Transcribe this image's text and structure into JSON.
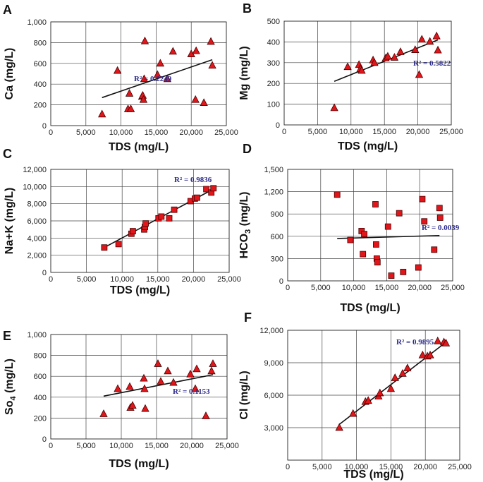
{
  "colors": {
    "marker": "#e0161b",
    "marker_edge": "#4a0000",
    "r2_text": "#2b2b8a",
    "line": "#111111"
  },
  "chart_data": [
    {
      "panel": "A",
      "type": "scatter",
      "marker": "triangle",
      "xlabel": "TDS (mg/L)",
      "ylabel": "Ca (mg/L)",
      "ylabel_sub": "",
      "xlim": [
        0,
        25000
      ],
      "ylim": [
        0,
        1000
      ],
      "xticks": [
        0,
        5000,
        10000,
        15000,
        20000,
        25000
      ],
      "xtick_labels": [
        "0",
        "5,000",
        "10,000",
        "15,000",
        "20,000",
        "25,000"
      ],
      "yticks": [
        0,
        200,
        400,
        600,
        800,
        1000
      ],
      "ytick_labels": [
        "0",
        "200",
        "400",
        "600",
        "800",
        "1,000"
      ],
      "r2_label": "R² = 0.2249",
      "trend": [
        [
          7300,
          270
        ],
        [
          23000,
          635
        ]
      ],
      "points": [
        [
          7300,
          110
        ],
        [
          9500,
          530
        ],
        [
          11000,
          160
        ],
        [
          11200,
          310
        ],
        [
          11400,
          160
        ],
        [
          13000,
          280
        ],
        [
          13100,
          290
        ],
        [
          13200,
          250
        ],
        [
          13300,
          450
        ],
        [
          13400,
          815
        ],
        [
          15200,
          490
        ],
        [
          15600,
          600
        ],
        [
          16600,
          450
        ],
        [
          17400,
          715
        ],
        [
          20000,
          690
        ],
        [
          20600,
          250
        ],
        [
          20700,
          720
        ],
        [
          21800,
          220
        ],
        [
          22800,
          810
        ],
        [
          23000,
          580
        ]
      ]
    },
    {
      "panel": "B",
      "type": "scatter",
      "marker": "triangle",
      "xlabel": "TDS (mg/L)",
      "ylabel": "Mg (mg/L)",
      "ylabel_sub": "",
      "xlim": [
        0,
        25000
      ],
      "ylim": [
        0,
        500
      ],
      "xticks": [
        0,
        5000,
        10000,
        15000,
        20000,
        25000
      ],
      "xtick_labels": [
        "0",
        "5,000",
        "10,000",
        "15,000",
        "20,000",
        "25,000"
      ],
      "yticks": [
        0,
        100,
        200,
        300,
        400,
        500
      ],
      "ytick_labels": [
        "0",
        "100",
        "200",
        "300",
        "400",
        "500"
      ],
      "r2_label": "R² = 0.5822",
      "trend": [
        [
          7500,
          210
        ],
        [
          23000,
          410
        ]
      ],
      "points": [
        [
          7500,
          82
        ],
        [
          9500,
          280
        ],
        [
          11200,
          290
        ],
        [
          11400,
          270
        ],
        [
          11600,
          262
        ],
        [
          13300,
          312
        ],
        [
          13500,
          300
        ],
        [
          15200,
          322
        ],
        [
          15500,
          330
        ],
        [
          16500,
          325
        ],
        [
          17400,
          352
        ],
        [
          19600,
          362
        ],
        [
          20200,
          242
        ],
        [
          20600,
          412
        ],
        [
          21800,
          402
        ],
        [
          22800,
          428
        ],
        [
          23000,
          360
        ]
      ]
    },
    {
      "panel": "C",
      "type": "scatter",
      "marker": "square",
      "xlabel": "TDS (mg/L)",
      "ylabel": "Na+K (mg/L)",
      "ylabel_sub": "",
      "xlim": [
        0,
        25000
      ],
      "ylim": [
        0,
        12000
      ],
      "xticks": [
        0,
        5000,
        10000,
        15000,
        20000,
        25000
      ],
      "xtick_labels": [
        "0",
        "5,000",
        "10,000",
        "15,000",
        "20,000",
        "25,000"
      ],
      "yticks": [
        0,
        2000,
        4000,
        6000,
        8000,
        10000,
        12000
      ],
      "ytick_labels": [
        "0",
        "2,000",
        "4,000",
        "6,000",
        "8,000",
        "10,000",
        "12,000"
      ],
      "r2_label": "R² = 0.9836",
      "trend": [
        [
          7500,
          2900
        ],
        [
          23000,
          9800
        ]
      ],
      "points": [
        [
          7500,
          2900
        ],
        [
          9500,
          3300
        ],
        [
          11300,
          4500
        ],
        [
          11500,
          4800
        ],
        [
          13100,
          5000
        ],
        [
          13200,
          5300
        ],
        [
          13300,
          5700
        ],
        [
          15100,
          6300
        ],
        [
          15500,
          6500
        ],
        [
          16600,
          6300
        ],
        [
          17300,
          7300
        ],
        [
          19600,
          8300
        ],
        [
          20200,
          8600
        ],
        [
          20500,
          8700
        ],
        [
          21800,
          9700
        ],
        [
          22500,
          9300
        ],
        [
          22800,
          9800
        ]
      ]
    },
    {
      "panel": "D",
      "type": "scatter",
      "marker": "square",
      "xlabel": "TDS (mg/L)",
      "ylabel": "HCO",
      "ylabel_sub": "3",
      "ylabel_tail": " (mg/L)",
      "xlim": [
        0,
        25000
      ],
      "ylim": [
        0,
        1500
      ],
      "xticks": [
        0,
        5000,
        10000,
        15000,
        20000,
        25000
      ],
      "xtick_labels": [
        "0",
        "5,000",
        "10,000",
        "15,000",
        "20,000",
        "25,000"
      ],
      "yticks": [
        0,
        300,
        600,
        900,
        1200,
        1500
      ],
      "ytick_labels": [
        "0",
        "300",
        "600",
        "900",
        "1,200",
        "1,500"
      ],
      "r2_label": "R² = 0.0039",
      "trend": [
        [
          7500,
          570
        ],
        [
          23000,
          610
        ]
      ],
      "points": [
        [
          7500,
          1160
        ],
        [
          9500,
          550
        ],
        [
          11200,
          670
        ],
        [
          11400,
          360
        ],
        [
          11600,
          630
        ],
        [
          13300,
          1030
        ],
        [
          13400,
          490
        ],
        [
          13500,
          300
        ],
        [
          13600,
          250
        ],
        [
          15200,
          730
        ],
        [
          15700,
          70
        ],
        [
          16900,
          910
        ],
        [
          17500,
          120
        ],
        [
          19800,
          180
        ],
        [
          20400,
          1100
        ],
        [
          20700,
          800
        ],
        [
          22200,
          420
        ],
        [
          23000,
          980
        ],
        [
          23100,
          850
        ]
      ]
    },
    {
      "panel": "E",
      "type": "scatter",
      "marker": "triangle",
      "xlabel": "TDS (mg/L)",
      "ylabel": "So",
      "ylabel_sub": "4",
      "ylabel_tail": " (mg/L)",
      "xlim": [
        0,
        25000
      ],
      "ylim": [
        0,
        1000
      ],
      "xticks": [
        0,
        5000,
        10000,
        15000,
        20000,
        25000
      ],
      "xtick_labels": [
        "0",
        "5,000",
        "10,000",
        "15,000",
        "20,000",
        "25,000"
      ],
      "yticks": [
        0,
        200,
        400,
        600,
        800,
        1000
      ],
      "ytick_labels": [
        "0",
        "200",
        "400",
        "600",
        "800",
        "1,000"
      ],
      "r2_label": "R² = 0.1153",
      "trend": [
        [
          7500,
          410
        ],
        [
          23000,
          615
        ]
      ],
      "points": [
        [
          7500,
          240
        ],
        [
          9500,
          480
        ],
        [
          11200,
          500
        ],
        [
          11300,
          300
        ],
        [
          11600,
          320
        ],
        [
          13200,
          580
        ],
        [
          13300,
          480
        ],
        [
          13400,
          290
        ],
        [
          15200,
          720
        ],
        [
          15600,
          550
        ],
        [
          16600,
          650
        ],
        [
          17400,
          540
        ],
        [
          19800,
          620
        ],
        [
          20500,
          480
        ],
        [
          20700,
          670
        ],
        [
          22000,
          220
        ],
        [
          22800,
          650
        ],
        [
          23000,
          720
        ]
      ]
    },
    {
      "panel": "F",
      "type": "scatter",
      "marker": "triangle",
      "xlabel": "TDS (mg/L)",
      "ylabel": "Cl (mg/L)",
      "ylabel_sub": "",
      "xlim": [
        0,
        25000
      ],
      "ylim": [
        0,
        12000
      ],
      "xticks": [
        0,
        5000,
        10000,
        15000,
        20000,
        25000
      ],
      "xtick_labels": [
        "0",
        "5,000",
        "10,000",
        "15,000",
        "20,000",
        "25,000"
      ],
      "yticks": [
        0,
        3000,
        6000,
        9000,
        12000
      ],
      "ytick_labels": [
        "",
        "3,000",
        "6,000",
        "9,000",
        "12,000"
      ],
      "r2_label": "R² = 0.9895",
      "trend": [
        [
          7500,
          3300
        ],
        [
          23000,
          10900
        ]
      ],
      "points": [
        [
          7500,
          3000
        ],
        [
          9500,
          4300
        ],
        [
          11300,
          5400
        ],
        [
          11700,
          5500
        ],
        [
          13200,
          5900
        ],
        [
          13400,
          6200
        ],
        [
          15000,
          6600
        ],
        [
          15600,
          7600
        ],
        [
          16700,
          8000
        ],
        [
          17400,
          8500
        ],
        [
          19600,
          9700
        ],
        [
          20300,
          9600
        ],
        [
          20700,
          9700
        ],
        [
          21800,
          11000
        ],
        [
          22700,
          10900
        ],
        [
          23000,
          10800
        ]
      ]
    }
  ]
}
